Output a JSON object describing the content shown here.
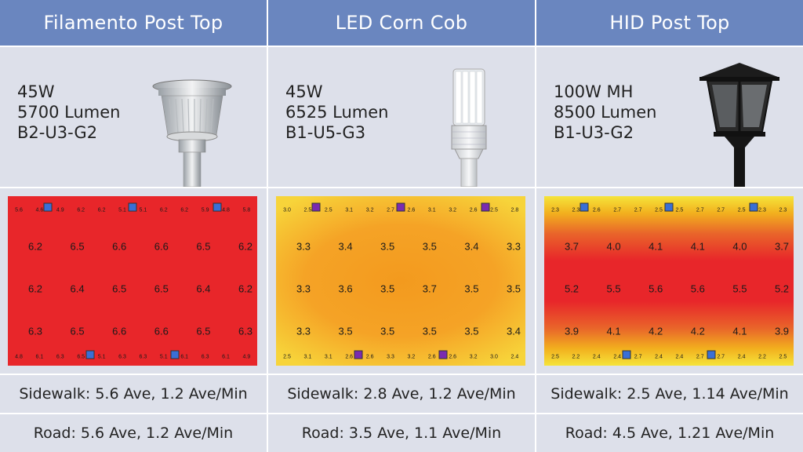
{
  "columns": [
    {
      "title": "Filamento Post Top",
      "specs": [
        "45W",
        "5700 Lumen",
        "B2-U3-G2"
      ],
      "fixture_icon": "post-top-luminaire-icon",
      "heatmap": {
        "style": "uniform-red",
        "colors": {
          "base": "#e8262a",
          "edge": "#e8262a"
        },
        "top_row": [
          "5.6",
          "4.6",
          "4.9",
          "6.2",
          "6.2",
          "5.1",
          "5.1",
          "6.2",
          "6.2",
          "5.9",
          "4.8",
          "5.8"
        ],
        "grid": [
          [
            "6.2",
            "6.5",
            "6.6",
            "6.6",
            "6.5",
            "6.2"
          ],
          [
            "6.2",
            "6.4",
            "6.5",
            "6.5",
            "6.4",
            "6.2"
          ],
          [
            "6.3",
            "6.5",
            "6.6",
            "6.6",
            "6.5",
            "6.3"
          ]
        ],
        "bottom_row": [
          "4.8",
          "6.1",
          "6.3",
          "6.5",
          "5.1",
          "6.3",
          "6.3",
          "5.1",
          "6.1",
          "6.3",
          "6.1",
          "4.9"
        ],
        "marker_color": "#3a6fd6"
      },
      "sidewalk": "Sidewalk: 5.6 Ave, 1.2 Ave/Min",
      "road": "Road: 5.6 Ave, 1.2 Ave/Min"
    },
    {
      "title": "LED Corn Cob",
      "specs": [
        "45W",
        "6525 Lumen",
        "B1-U5-G3"
      ],
      "fixture_icon": "corn-cob-lamp-icon",
      "heatmap": {
        "style": "orange-yellow",
        "colors": {
          "base": "#f5a623",
          "edge": "#f7d43a"
        },
        "top_row": [
          "3.0",
          "2.5",
          "2.5",
          "3.1",
          "3.2",
          "2.7",
          "2.6",
          "3.1",
          "3.2",
          "2.6",
          "2.5",
          "2.8"
        ],
        "grid": [
          [
            "3.3",
            "3.4",
            "3.5",
            "3.5",
            "3.4",
            "3.3"
          ],
          [
            "3.3",
            "3.6",
            "3.5",
            "3.7",
            "3.5",
            "3.5"
          ],
          [
            "3.3",
            "3.5",
            "3.5",
            "3.5",
            "3.5",
            "3.4"
          ]
        ],
        "bottom_row": [
          "2.5",
          "3.1",
          "3.1",
          "2.6",
          "2.6",
          "3.3",
          "3.2",
          "2.6",
          "2.6",
          "3.2",
          "3.0",
          "2.4"
        ],
        "marker_color": "#7a2bb0"
      },
      "sidewalk": "Sidewalk: 2.8 Ave, 1.2 Ave/Min",
      "road": "Road: 3.5 Ave, 1.1 Ave/Min"
    },
    {
      "title": "HID Post Top",
      "specs": [
        "100W MH",
        "8500 Lumen",
        "B1-U3-G2"
      ],
      "fixture_icon": "lantern-post-top-icon",
      "heatmap": {
        "style": "red-center-yellow-edge",
        "colors": {
          "base": "#e8262a",
          "edge": "#f5e43a"
        },
        "top_row": [
          "2.3",
          "2.3",
          "2.6",
          "2.7",
          "2.7",
          "2.5",
          "2.5",
          "2.7",
          "2.7",
          "2.5",
          "2.3",
          "2.3"
        ],
        "grid": [
          [
            "3.7",
            "4.0",
            "4.1",
            "4.1",
            "4.0",
            "3.7"
          ],
          [
            "5.2",
            "5.5",
            "5.6",
            "5.6",
            "5.5",
            "5.2"
          ],
          [
            "3.9",
            "4.1",
            "4.2",
            "4.2",
            "4.1",
            "3.9"
          ]
        ],
        "bottom_row": [
          "2.5",
          "2.2",
          "2.4",
          "2.4",
          "2.7",
          "2.4",
          "2.4",
          "2.7",
          "2.7",
          "2.4",
          "2.2",
          "2.5"
        ],
        "marker_color": "#3a6fd6"
      },
      "sidewalk": "Sidewalk: 2.5 Ave, 1.14 Ave/Min",
      "road": "Road: 4.5 Ave, 1.21 Ave/Min"
    }
  ]
}
